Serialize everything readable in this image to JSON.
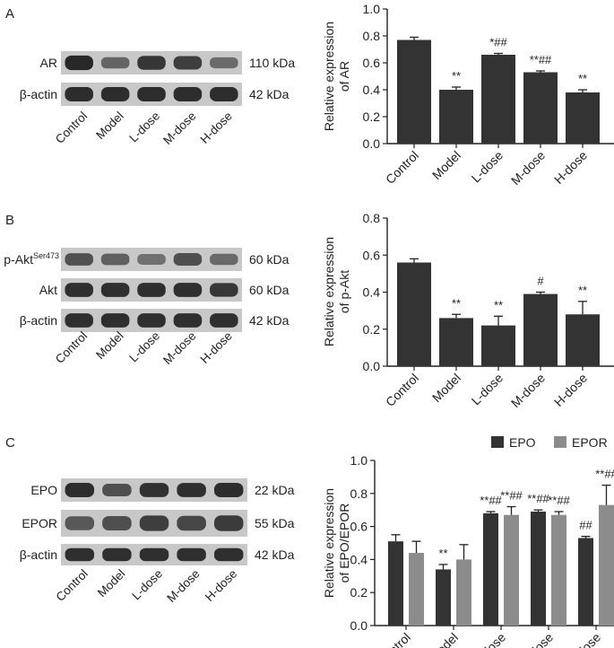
{
  "panels": [
    {
      "label": "A",
      "blots": [
        {
          "name": "AR",
          "size": "110 kDa",
          "intensity": [
            0.92,
            0.45,
            0.82,
            0.75,
            0.4
          ]
        },
        {
          "name": "β-actin",
          "size": "42 kDa",
          "intensity": [
            0.88,
            0.88,
            0.88,
            0.88,
            0.88
          ]
        }
      ],
      "groups": [
        "Control",
        "Model",
        "L-dose",
        "M-dose",
        "H-dose"
      ],
      "chart_data": {
        "type": "bar",
        "categories": [
          "Control",
          "Model",
          "L-dose",
          "M-dose",
          "H-dose"
        ],
        "series": [
          {
            "values": [
              0.77,
              0.4,
              0.66,
              0.53,
              0.38
            ],
            "errors": [
              0.02,
              0.02,
              0.01,
              0.01,
              0.02
            ]
          }
        ],
        "annotations": [
          "",
          "**",
          "*##",
          "**##",
          "**"
        ],
        "ylabel": [
          "Relative expression",
          "of AR"
        ],
        "ylim": [
          0,
          1.0
        ],
        "yticks": [
          "0.0",
          "0.2",
          "0.4",
          "0.6",
          "0.8",
          "1.0"
        ]
      }
    },
    {
      "label": "B",
      "blots": [
        {
          "name": "p-Akt",
          "sup": "Ser473",
          "size": "60 kDa",
          "intensity": [
            0.6,
            0.48,
            0.36,
            0.62,
            0.42
          ]
        },
        {
          "name": "Akt",
          "size": "60 kDa",
          "intensity": [
            0.86,
            0.86,
            0.86,
            0.86,
            0.8
          ]
        },
        {
          "name": "β-actin",
          "size": "42 kDa",
          "intensity": [
            0.86,
            0.86,
            0.86,
            0.86,
            0.86
          ]
        }
      ],
      "groups": [
        "Control",
        "Model",
        "L-dose",
        "M-dose",
        "H-dose"
      ],
      "chart_data": {
        "type": "bar",
        "categories": [
          "Control",
          "Model",
          "L-dose",
          "M-dose",
          "H-dose"
        ],
        "series": [
          {
            "values": [
              0.56,
              0.26,
              0.22,
              0.39,
              0.28
            ],
            "errors": [
              0.02,
              0.02,
              0.05,
              0.01,
              0.07
            ]
          }
        ],
        "annotations": [
          "",
          "**",
          "**",
          "#",
          "**"
        ],
        "ylabel": [
          "Relative expression",
          "of p-Akt"
        ],
        "ylim": [
          0,
          0.8
        ],
        "yticks": [
          "0.0",
          "0.2",
          "0.4",
          "0.6",
          "0.8"
        ]
      }
    },
    {
      "label": "C",
      "blots": [
        {
          "name": "EPO",
          "size": "22 kDa",
          "intensity": [
            0.88,
            0.62,
            0.85,
            0.86,
            0.88
          ]
        },
        {
          "name": "EPOR",
          "size": "55 kDa",
          "intensity": [
            0.55,
            0.62,
            0.75,
            0.68,
            0.78
          ]
        },
        {
          "name": "β-actin",
          "size": "42 kDa",
          "intensity": [
            0.86,
            0.86,
            0.86,
            0.86,
            0.86
          ]
        }
      ],
      "groups": [
        "Control",
        "Model",
        "L-dose",
        "M-dose",
        "H-dose"
      ],
      "chart_data": {
        "type": "bar",
        "categories": [
          "Control",
          "Model",
          "L-dose",
          "M-dose",
          "H-dose"
        ],
        "series": [
          {
            "name": "EPO",
            "values": [
              0.51,
              0.34,
              0.68,
              0.69,
              0.53
            ],
            "errors": [
              0.04,
              0.03,
              0.01,
              0.01,
              0.01
            ],
            "annotations": [
              "",
              "**",
              "**##",
              "**##",
              "##"
            ]
          },
          {
            "name": "EPOR",
            "values": [
              0.44,
              0.4,
              0.67,
              0.67,
              0.73
            ],
            "errors": [
              0.07,
              0.09,
              0.05,
              0.02,
              0.12
            ],
            "annotations": [
              "",
              "",
              "**##",
              "**##",
              "**##"
            ]
          }
        ],
        "ylabel": [
          "Relative expression",
          "of EPO/EPOR"
        ],
        "ylim": [
          0,
          1.0
        ],
        "yticks": [
          "0.0",
          "0.2",
          "0.4",
          "0.6",
          "0.8",
          "1.0"
        ],
        "legend": "top-right"
      }
    }
  ],
  "colors": {
    "bar": "#333333",
    "bar_secondary": "#8c8c8c",
    "blot_background": "#c8c8c8",
    "band": "#1e1e1e"
  }
}
